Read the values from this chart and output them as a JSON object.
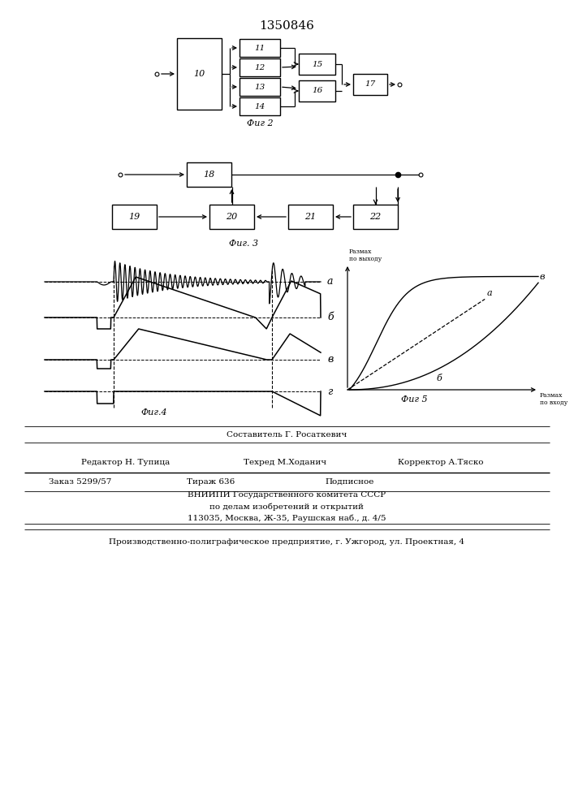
{
  "title": "1350846",
  "fig2_label": "Фиг 2",
  "fig3_label": "Фиг. 3",
  "fig4_label": "Фиг.4",
  "fig5_label": "Фиг 5",
  "bg_color": "#ffffff"
}
